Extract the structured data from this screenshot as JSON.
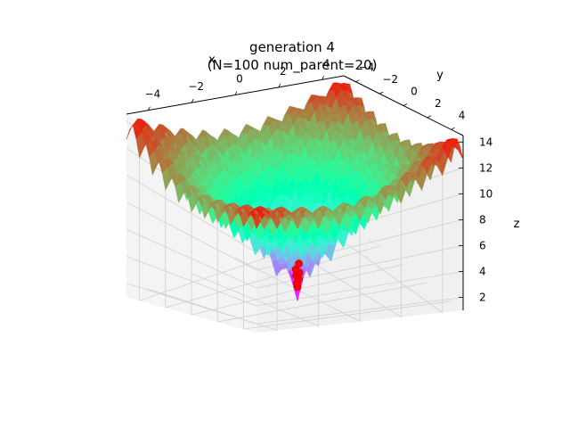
{
  "chart_data": {
    "type": "surface3d",
    "title_line1": "generation 4",
    "title_line2": "(N=100 num_parent=20)",
    "xlabel": "x",
    "ylabel": "y",
    "zlabel": "z",
    "xlim": [
      -5,
      5
    ],
    "ylim": [
      -5,
      5
    ],
    "zlim": [
      1,
      14.5
    ],
    "x_ticks": [
      "−4",
      "−2",
      "0",
      "2",
      "4"
    ],
    "y_ticks": [
      "−4",
      "−2",
      "0",
      "2",
      "4"
    ],
    "z_ticks": [
      "2",
      "4",
      "6",
      "8",
      "10",
      "12",
      "14"
    ],
    "function": "ackley",
    "colormap": "rainbow",
    "grid": true,
    "population_color": "#ff0000",
    "population_points": [
      {
        "x": 0.02,
        "y": -0.03,
        "z": 1.2
      },
      {
        "x": -0.05,
        "y": 0.04,
        "z": 1.6
      },
      {
        "x": 0.06,
        "y": 0.02,
        "z": 1.9
      },
      {
        "x": -0.02,
        "y": -0.07,
        "z": 2.2
      },
      {
        "x": 0.04,
        "y": 0.08,
        "z": 2.5
      },
      {
        "x": -0.08,
        "y": 0.01,
        "z": 2.8
      },
      {
        "x": 0.09,
        "y": -0.04,
        "z": 3.2
      }
    ]
  }
}
